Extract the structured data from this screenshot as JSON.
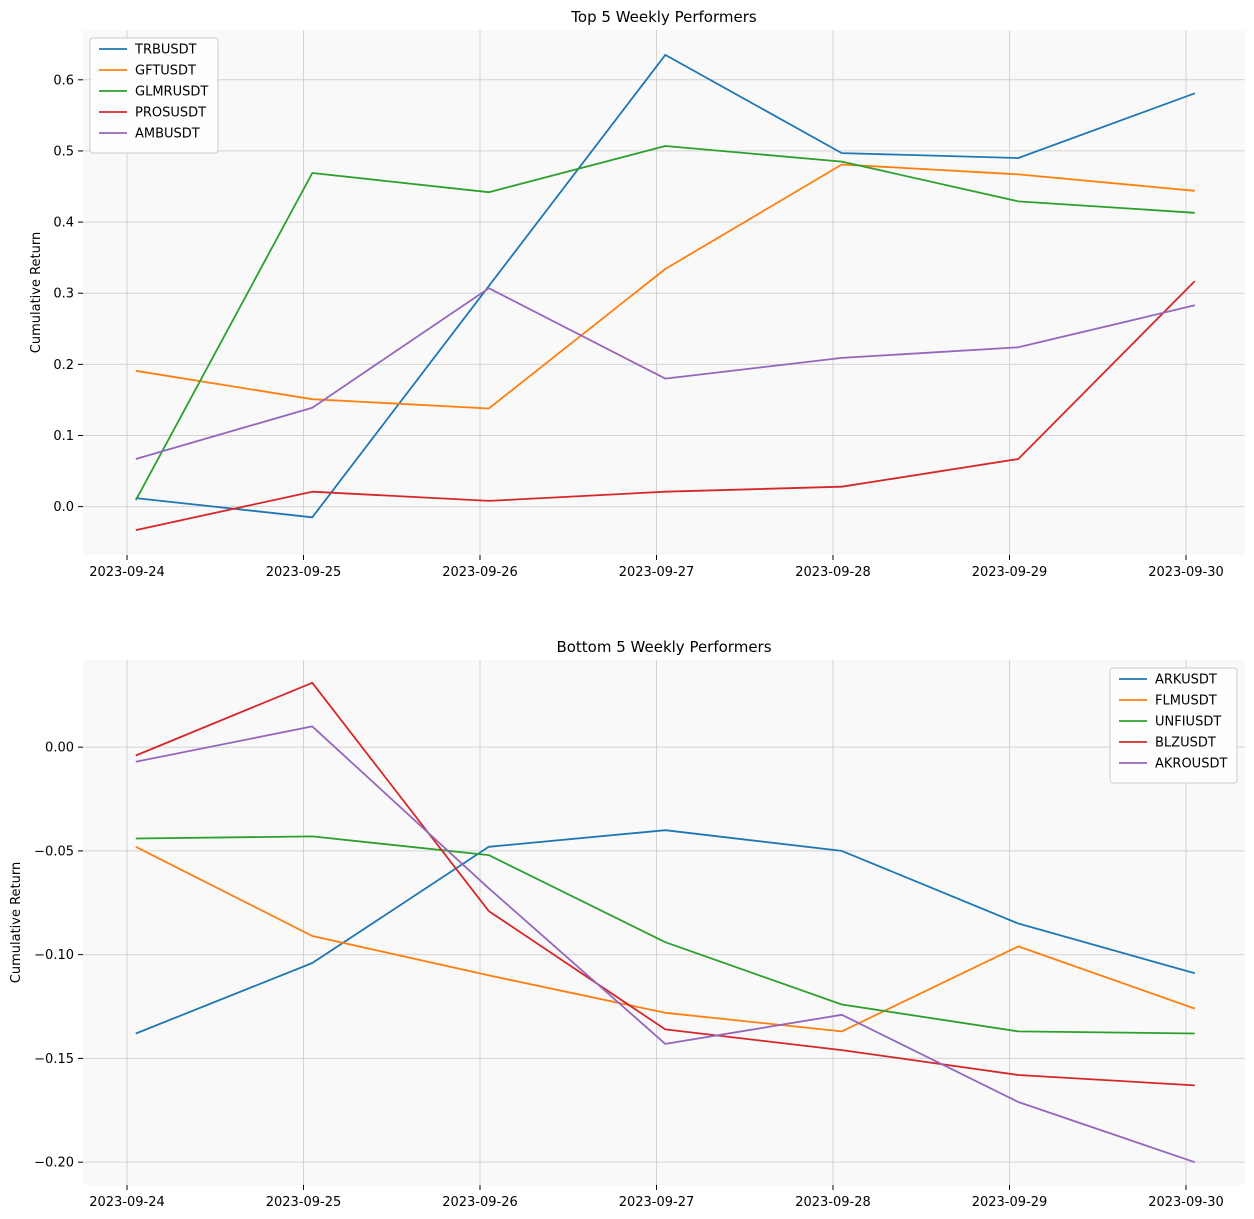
{
  "chart_data": [
    {
      "type": "line",
      "title": "Top 5 Weekly Performers",
      "xlabel": "",
      "ylabel": "Cumulative Return",
      "x": [
        "2023-09-24",
        "2023-09-25",
        "2023-09-26",
        "2023-09-27",
        "2023-09-28",
        "2023-09-29",
        "2023-09-30"
      ],
      "ylim": [
        -0.068,
        0.67
      ],
      "yticks": [
        0.0,
        0.1,
        0.2,
        0.3,
        0.4,
        0.5,
        0.6
      ],
      "ytick_labels": [
        "0.0",
        "0.1",
        "0.2",
        "0.3",
        "0.4",
        "0.5",
        "0.6"
      ],
      "grid": true,
      "legend": "top-left",
      "series": [
        {
          "name": "TRBUSDT",
          "color": "#1f77b4",
          "x": [
            0.05,
            1.05,
            2.05,
            3.05,
            4.05,
            5.05,
            6.05
          ],
          "values": [
            0.012,
            -0.015,
            0.31,
            0.635,
            0.497,
            0.49,
            0.581
          ]
        },
        {
          "name": "GFTUSDT",
          "color": "#ff7f0e",
          "x": [
            0.05,
            1.05,
            2.05,
            3.05,
            4.05,
            5.05,
            6.05
          ],
          "values": [
            0.191,
            0.151,
            0.138,
            0.334,
            0.481,
            0.467,
            0.444
          ]
        },
        {
          "name": "GLMRUSDT",
          "color": "#2ca02c",
          "x": [
            0.05,
            1.05,
            2.05,
            3.05,
            4.05,
            5.05,
            6.05
          ],
          "values": [
            0.009,
            0.469,
            0.442,
            0.507,
            0.485,
            0.429,
            0.413
          ]
        },
        {
          "name": "PROSUSDT",
          "color": "#d62728",
          "x": [
            0.05,
            1.05,
            2.05,
            3.05,
            4.05,
            5.05,
            6.05
          ],
          "values": [
            -0.033,
            0.021,
            0.008,
            0.021,
            0.028,
            0.067,
            0.317
          ]
        },
        {
          "name": "AMBUSDT",
          "color": "#9467bd",
          "x": [
            0.05,
            1.05,
            2.05,
            3.05,
            4.05,
            5.05,
            6.05
          ],
          "values": [
            0.067,
            0.139,
            0.307,
            0.18,
            0.209,
            0.224,
            0.283
          ]
        }
      ]
    },
    {
      "type": "line",
      "title": "Bottom 5 Weekly Performers",
      "xlabel": "",
      "ylabel": "Cumulative Return",
      "x": [
        "2023-09-24",
        "2023-09-25",
        "2023-09-26",
        "2023-09-27",
        "2023-09-28",
        "2023-09-29",
        "2023-09-30"
      ],
      "ylim": [
        -0.211,
        0.042
      ],
      "yticks": [
        -0.2,
        -0.15,
        -0.1,
        -0.05,
        0.0
      ],
      "ytick_labels": [
        "−0.20",
        "−0.15",
        "−0.10",
        "−0.05",
        "0.00"
      ],
      "grid": true,
      "legend": "top-right",
      "series": [
        {
          "name": "ARKUSDT",
          "color": "#1f77b4",
          "x": [
            0.05,
            1.05,
            2.05,
            3.05,
            4.05,
            5.05,
            6.05
          ],
          "values": [
            -0.138,
            -0.104,
            -0.048,
            -0.04,
            -0.05,
            -0.085,
            -0.109
          ]
        },
        {
          "name": "FLMUSDT",
          "color": "#ff7f0e",
          "x": [
            0.05,
            1.05,
            2.05,
            3.05,
            4.05,
            5.05,
            6.05
          ],
          "values": [
            -0.048,
            -0.091,
            -0.11,
            -0.128,
            -0.137,
            -0.096,
            -0.126
          ]
        },
        {
          "name": "UNFIUSDT",
          "color": "#2ca02c",
          "x": [
            0.05,
            1.05,
            2.05,
            3.05,
            4.05,
            5.05,
            6.05
          ],
          "values": [
            -0.044,
            -0.043,
            -0.052,
            -0.094,
            -0.124,
            -0.137,
            -0.138
          ]
        },
        {
          "name": "BLZUSDT",
          "color": "#d62728",
          "x": [
            0.05,
            1.05,
            2.05,
            3.05,
            4.05,
            5.05,
            6.05
          ],
          "values": [
            -0.004,
            0.031,
            -0.079,
            -0.136,
            -0.146,
            -0.158,
            -0.163
          ]
        },
        {
          "name": "AKROUSDT",
          "color": "#9467bd",
          "x": [
            0.05,
            1.05,
            2.05,
            3.05,
            4.05,
            5.05,
            6.05
          ],
          "values": [
            -0.007,
            0.01,
            -0.068,
            -0.143,
            -0.129,
            -0.171,
            -0.2
          ]
        }
      ]
    }
  ]
}
